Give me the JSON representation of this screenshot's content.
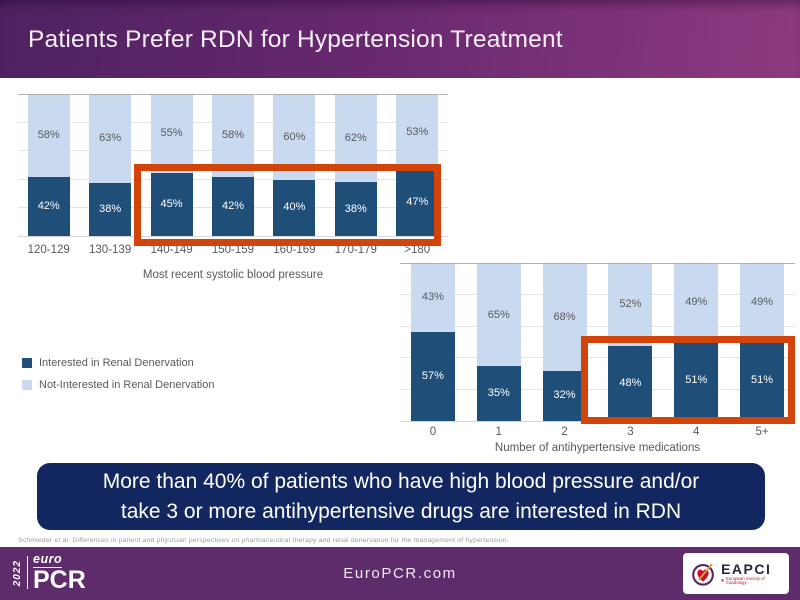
{
  "header": {
    "title": "Patients Prefer RDN for Hypertension Treatment"
  },
  "legend": {
    "interested": "Interested in Renal Denervation",
    "not_interested": "Not-Interested  in Renal Denervation"
  },
  "chart_data": [
    {
      "type": "bar",
      "stacked": true,
      "categories": [
        "120-129",
        "130-139",
        "140-149",
        "150-159",
        "160-169",
        "170-179",
        ">180"
      ],
      "series": [
        {
          "name": "Interested in Renal Denervation",
          "color": "#1f4e79",
          "values": [
            42,
            38,
            45,
            42,
            40,
            38,
            47
          ]
        },
        {
          "name": "Not-Interested in Renal Denervation",
          "color": "#c9daf0",
          "values": [
            58,
            63,
            55,
            58,
            60,
            62,
            53
          ]
        }
      ],
      "xlabel": "Most recent systolic blood pressure",
      "ylim": [
        0,
        100
      ],
      "grid": "horizontal, every 20%",
      "legend_position": "left, below chart",
      "value_suffix": "%",
      "highlight": {
        "categories": [
          "140-149",
          "150-159",
          "160-169",
          "170-179",
          ">180"
        ],
        "series": "Interested in Renal Denervation",
        "color": "#d2440a"
      }
    },
    {
      "type": "bar",
      "stacked": true,
      "categories": [
        "0",
        "1",
        "2",
        "3",
        "4",
        "5+"
      ],
      "series": [
        {
          "name": "Interested in Renal Denervation",
          "color": "#1f4e79",
          "values": [
            57,
            35,
            32,
            48,
            51,
            51
          ]
        },
        {
          "name": "Not-Interested in Renal Denervation",
          "color": "#c9daf0",
          "values": [
            43,
            65,
            68,
            52,
            49,
            49
          ]
        }
      ],
      "xlabel": "Number of antihypertensive medications",
      "ylim": [
        0,
        100
      ],
      "grid": "horizontal, every 20%",
      "value_suffix": "%",
      "highlight": {
        "categories": [
          "3",
          "4",
          "5+"
        ],
        "series": "Interested in Renal Denervation",
        "color": "#d2440a"
      }
    }
  ],
  "banner": {
    "line1": "More than 40% of patients who have high blood pressure and/or",
    "line2": "take 3 or more antihypertensive drugs are interested in RDN"
  },
  "citation": "Schmieder et al. Differences in patient and physician perspectives on pharmaceutical therapy and renal denervation for the management of hypertension.",
  "footer": {
    "year": "2022",
    "logo_top": "euro",
    "logo_main": "PCR",
    "website": "EuroPCR.com",
    "eapci": {
      "name": "EAPCI",
      "subtitle": "European Society of Cardiology"
    }
  },
  "colors": {
    "header_gradient_left": "#4e2161",
    "header_gradient_right": "#8d3a80",
    "bar_dark": "#1f4e79",
    "bar_light": "#c9daf0",
    "highlight_orange": "#d2440a",
    "banner_navy": "#12265f",
    "footer_purple": "#5e2b6b",
    "axis_text_gray": "#595959"
  }
}
